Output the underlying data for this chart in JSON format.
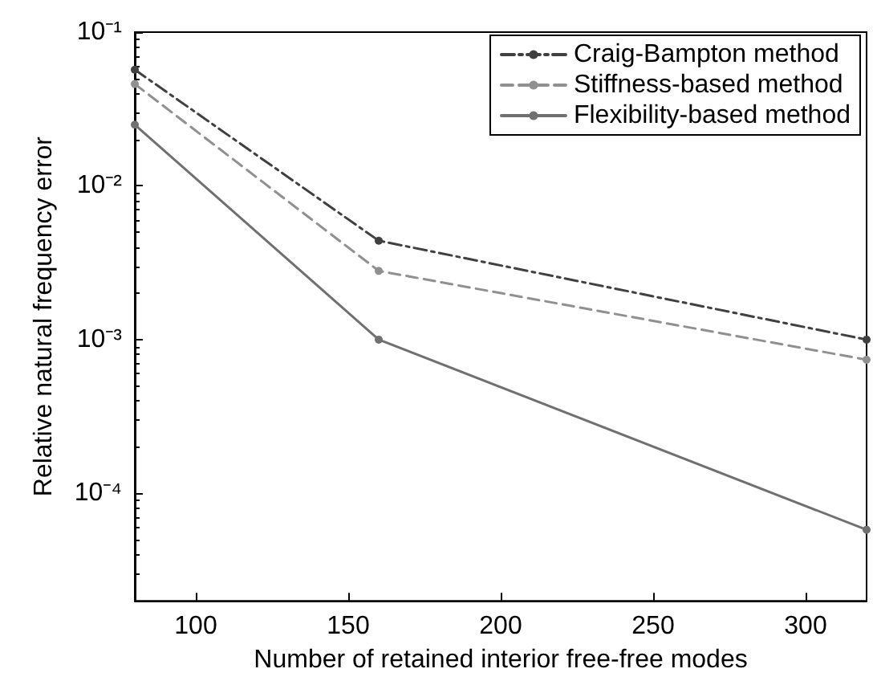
{
  "chart_data": {
    "type": "line",
    "xlabel": "Number of retained interior free-free modes",
    "ylabel": "Relative natural frequency error",
    "x": [
      80,
      160,
      320
    ],
    "series": [
      {
        "name": "Craig-Bampton method",
        "color": "#404040",
        "line_style": "dashdot",
        "values": [
          0.057,
          0.0044,
          0.001
        ]
      },
      {
        "name": "Stiffness-based method",
        "color": "#909090",
        "line_style": "dashed",
        "values": [
          0.046,
          0.0028,
          0.00074
        ]
      },
      {
        "name": "Flexibility-based method",
        "color": "#707070",
        "line_style": "solid",
        "values": [
          0.025,
          0.001,
          5.8e-05
        ]
      }
    ],
    "xlim": [
      80,
      320
    ],
    "xticks": [
      100,
      150,
      200,
      250,
      300
    ],
    "ylim": [
      2e-05,
      0.1
    ],
    "yticks": [
      {
        "value": 0.0001,
        "label": "10⁻⁴"
      },
      {
        "value": 0.001,
        "label": "10⁻³"
      },
      {
        "value": 0.01,
        "label": "10⁻²"
      },
      {
        "value": 0.1,
        "label": "10⁻¹"
      }
    ],
    "log": "y",
    "grid": false,
    "legend": "top right",
    "marker": "circle"
  }
}
